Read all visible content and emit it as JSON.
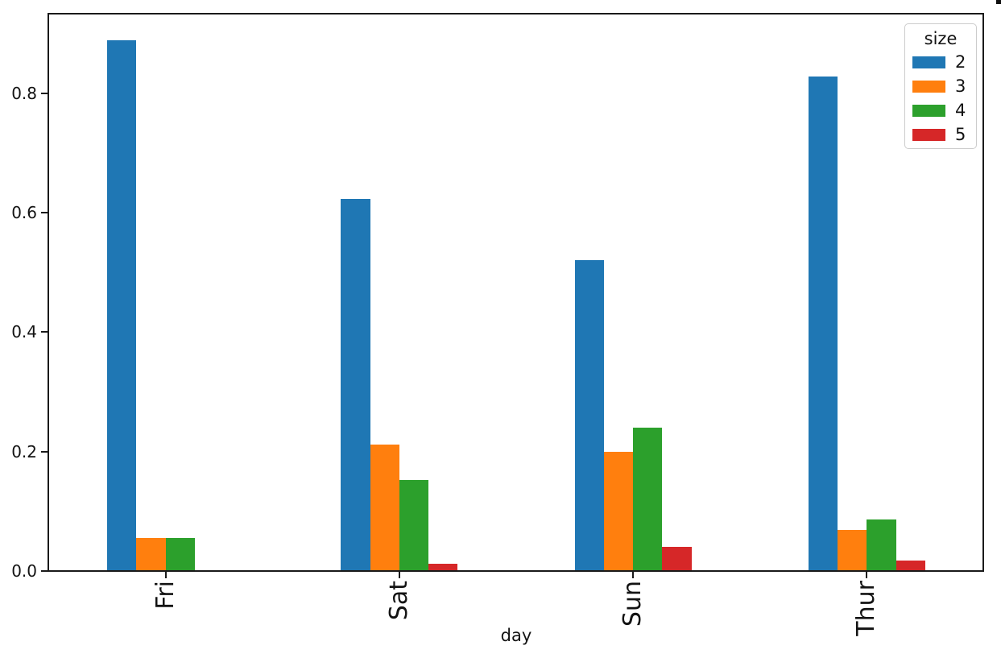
{
  "chart_data": {
    "type": "bar",
    "title": "",
    "xlabel": "day",
    "ylabel": "",
    "categories": [
      "Fri",
      "Sat",
      "Sun",
      "Thur"
    ],
    "series": [
      {
        "name": "2",
        "color": "#1f77b4",
        "values": [
          0.8889,
          0.6235,
          0.52,
          0.8276
        ]
      },
      {
        "name": "3",
        "color": "#ff7f0e",
        "values": [
          0.0556,
          0.2118,
          0.2,
          0.069
        ]
      },
      {
        "name": "4",
        "color": "#2ca02c",
        "values": [
          0.0556,
          0.1529,
          0.24,
          0.0862
        ]
      },
      {
        "name": "5",
        "color": "#d62728",
        "values": [
          0.0,
          0.0118,
          0.04,
          0.0172
        ]
      }
    ],
    "yticks": [
      "0.0",
      "0.2",
      "0.4",
      "0.6",
      "0.8"
    ],
    "ylim": [
      0,
      0.9333
    ],
    "xlim": [
      -0.5,
      3.5
    ],
    "bar_group_total_width": 0.5,
    "x_tick_rotation": 90,
    "grid": false,
    "legend": {
      "title": "size",
      "position": "upper right",
      "entries": [
        "2",
        "3",
        "4",
        "5"
      ]
    }
  }
}
